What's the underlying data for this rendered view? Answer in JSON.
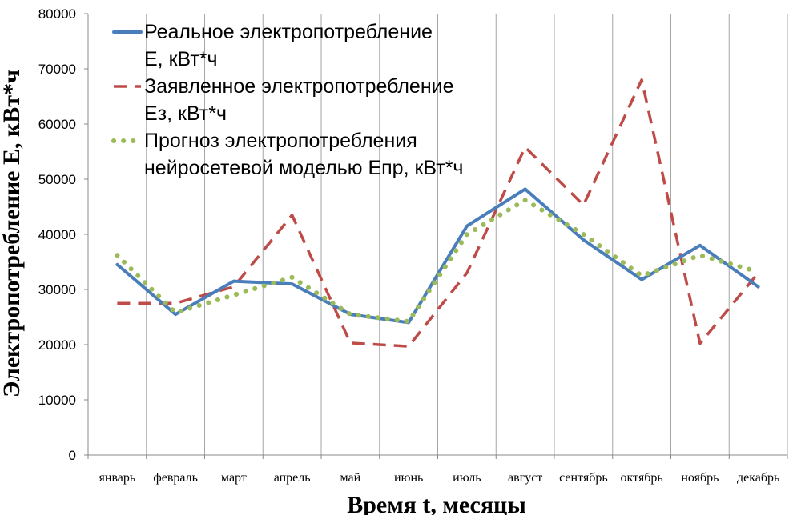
{
  "chart_data": {
    "type": "line",
    "title": "",
    "xlabel": "Время t, месяцы",
    "ylabel": "Электропотребление Е, кВт*ч",
    "categories": [
      "январь",
      "февраль",
      "март",
      "апрель",
      "май",
      "июнь",
      "июль",
      "август",
      "сентябрь",
      "октябрь",
      "ноябрь",
      "декабрь"
    ],
    "ylim": [
      0,
      80000
    ],
    "yticks": [
      "0",
      "10000",
      "20000",
      "30000",
      "40000",
      "50000",
      "60000",
      "70000",
      "80000"
    ],
    "grid": "vertical",
    "legend_position": "top-left",
    "series": [
      {
        "name": "Реальное электропотребление Е, кВт*ч",
        "legend_lines": [
          "Реальное электропотребление",
          "Е, кВт*ч"
        ],
        "style": "solid",
        "color": "#4a7ebb",
        "values": [
          34500,
          25500,
          31500,
          31000,
          25500,
          24000,
          41500,
          48200,
          39000,
          31800,
          38000,
          30500
        ]
      },
      {
        "name": "Заявленное электропотребление Ез, кВт*ч",
        "legend_lines": [
          "Заявленное электропотребление",
          "Ез, кВт*ч"
        ],
        "style": "dashed",
        "color": "#be4b48",
        "values": [
          27500,
          27500,
          30500,
          43500,
          20300,
          19700,
          33000,
          55800,
          45300,
          68000,
          20200,
          33000
        ]
      },
      {
        "name": "Прогноз электропотребления нейросетевой моделью Епр, кВт*ч",
        "legend_lines": [
          "Прогноз электропотребления",
          "нейросетевой моделью Епр, кВт*ч"
        ],
        "style": "dotted",
        "color": "#9bbb59",
        "values": [
          36200,
          25800,
          29000,
          32200,
          25500,
          24200,
          40000,
          46200,
          40000,
          32500,
          36200,
          33200
        ]
      }
    ]
  }
}
